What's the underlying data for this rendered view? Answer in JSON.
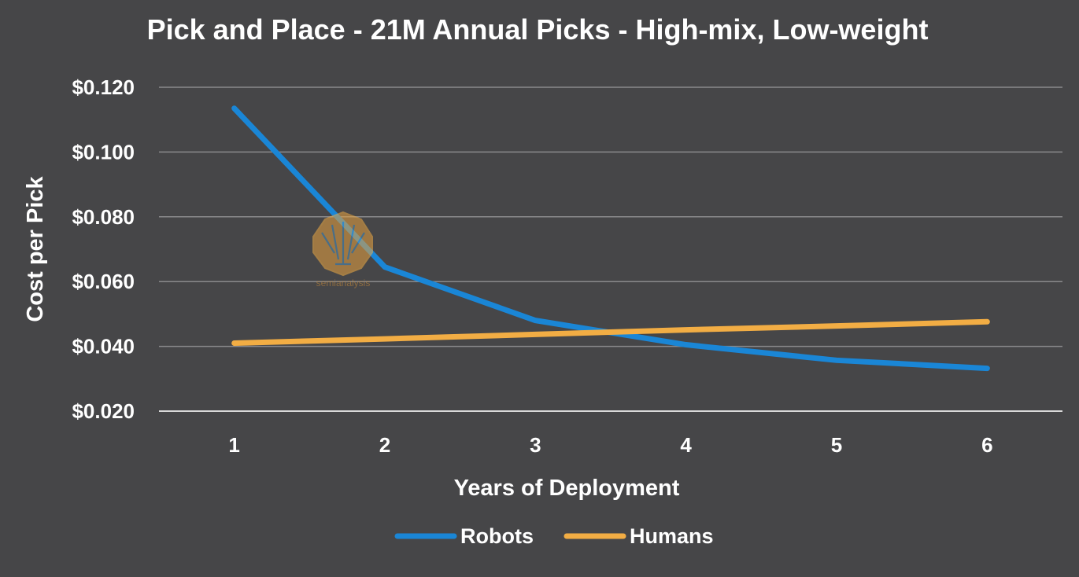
{
  "chart_data": {
    "type": "line",
    "title": "Pick and Place - 21M Annual Picks - High-mix, Low-weight",
    "xlabel": "Years of Deployment",
    "ylabel": "Cost per Pick",
    "x": [
      1,
      2,
      3,
      4,
      5,
      6
    ],
    "x_tick_labels": [
      "1",
      "2",
      "3",
      "4",
      "5",
      "6"
    ],
    "ylim": [
      0.02,
      0.12
    ],
    "y_ticks": [
      0.02,
      0.04,
      0.06,
      0.08,
      0.1,
      0.12
    ],
    "y_tick_labels": [
      "$0.020",
      "$0.040",
      "$0.060",
      "$0.080",
      "$0.100",
      "$0.120"
    ],
    "grid": true,
    "legend_position": "bottom",
    "series": [
      {
        "name": "Robots",
        "color": "#1a86d6",
        "values": [
          0.1135,
          0.0645,
          0.048,
          0.0405,
          0.0357,
          0.0332
        ]
      },
      {
        "name": "Humans",
        "color": "#f2ad44",
        "values": [
          0.041,
          0.0423,
          0.0437,
          0.0451,
          0.0463,
          0.0476
        ]
      }
    ]
  },
  "watermark": {
    "text": "semianalysis",
    "icon": "tree-chip-logo-icon"
  }
}
